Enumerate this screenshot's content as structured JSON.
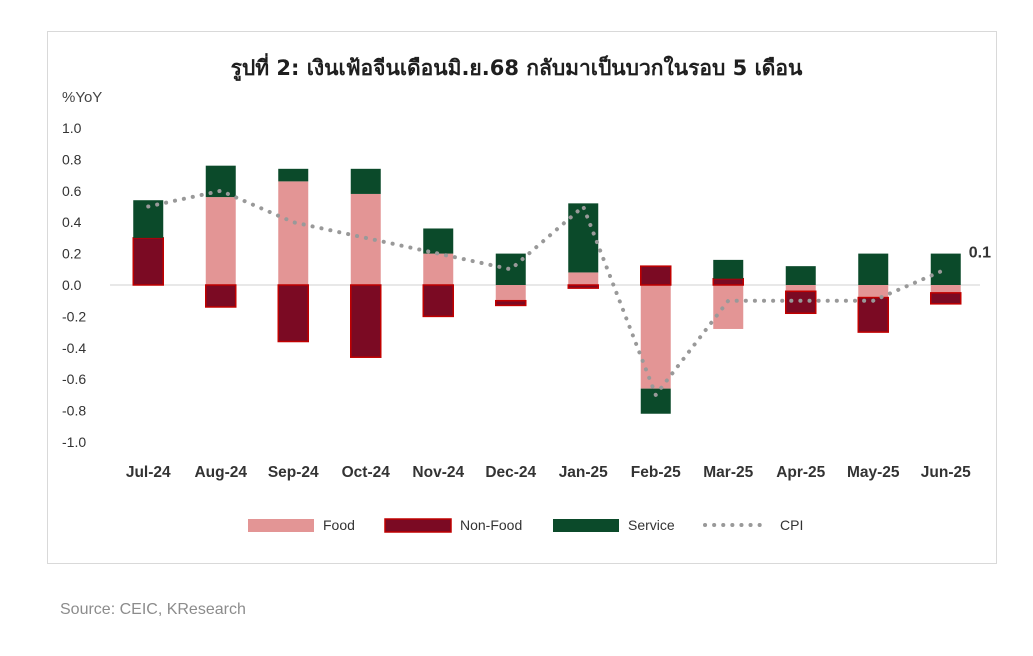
{
  "chart_data": {
    "type": "bar",
    "title": "รูปที่ 2: เงินเฟ้อจีนเดือนมิ.ย.68 กลับมาเป็นบวกในรอบ 5 เดือน",
    "ylabel": "%YoY",
    "ylim": [
      -1.0,
      1.0
    ],
    "yticks": [
      "1.0",
      "0.8",
      "0.6",
      "0.4",
      "0.2",
      "0.0",
      "-0.2",
      "-0.4",
      "-0.6",
      "-0.8",
      "-1.0"
    ],
    "categories": [
      "Jul-24",
      "Aug-24",
      "Sep-24",
      "Oct-24",
      "Nov-24",
      "Dec-24",
      "Jan-25",
      "Feb-25",
      "Mar-25",
      "Apr-25",
      "May-25",
      "Jun-25"
    ],
    "stacked": true,
    "series": [
      {
        "name": "Food",
        "kind": "bar",
        "color": "#e39595",
        "values": [
          0.0,
          0.56,
          0.66,
          0.58,
          0.2,
          -0.1,
          0.08,
          -0.66,
          -0.28,
          -0.04,
          -0.08,
          -0.05
        ]
      },
      {
        "name": "Non-Food",
        "kind": "bar",
        "color": "#7b0a23",
        "values": [
          0.3,
          -0.14,
          -0.36,
          -0.46,
          -0.2,
          -0.03,
          -0.02,
          0.12,
          0.04,
          -0.14,
          -0.22,
          -0.07
        ]
      },
      {
        "name": "Service",
        "kind": "bar",
        "color": "#0b4a2a",
        "values": [
          0.24,
          0.2,
          0.08,
          0.16,
          0.16,
          0.2,
          0.44,
          -0.16,
          0.12,
          0.12,
          0.2,
          0.2
        ]
      },
      {
        "name": "CPI",
        "kind": "line",
        "color": "#999999",
        "values": [
          0.5,
          0.6,
          0.4,
          0.3,
          0.2,
          0.1,
          0.5,
          -0.7,
          -0.1,
          -0.1,
          -0.1,
          0.1
        ]
      }
    ],
    "annotations": [
      {
        "text": "0.1",
        "category": "Jun-25"
      }
    ],
    "legend_position": "bottom",
    "grid": false
  },
  "source": "Source: CEIC, KResearch"
}
